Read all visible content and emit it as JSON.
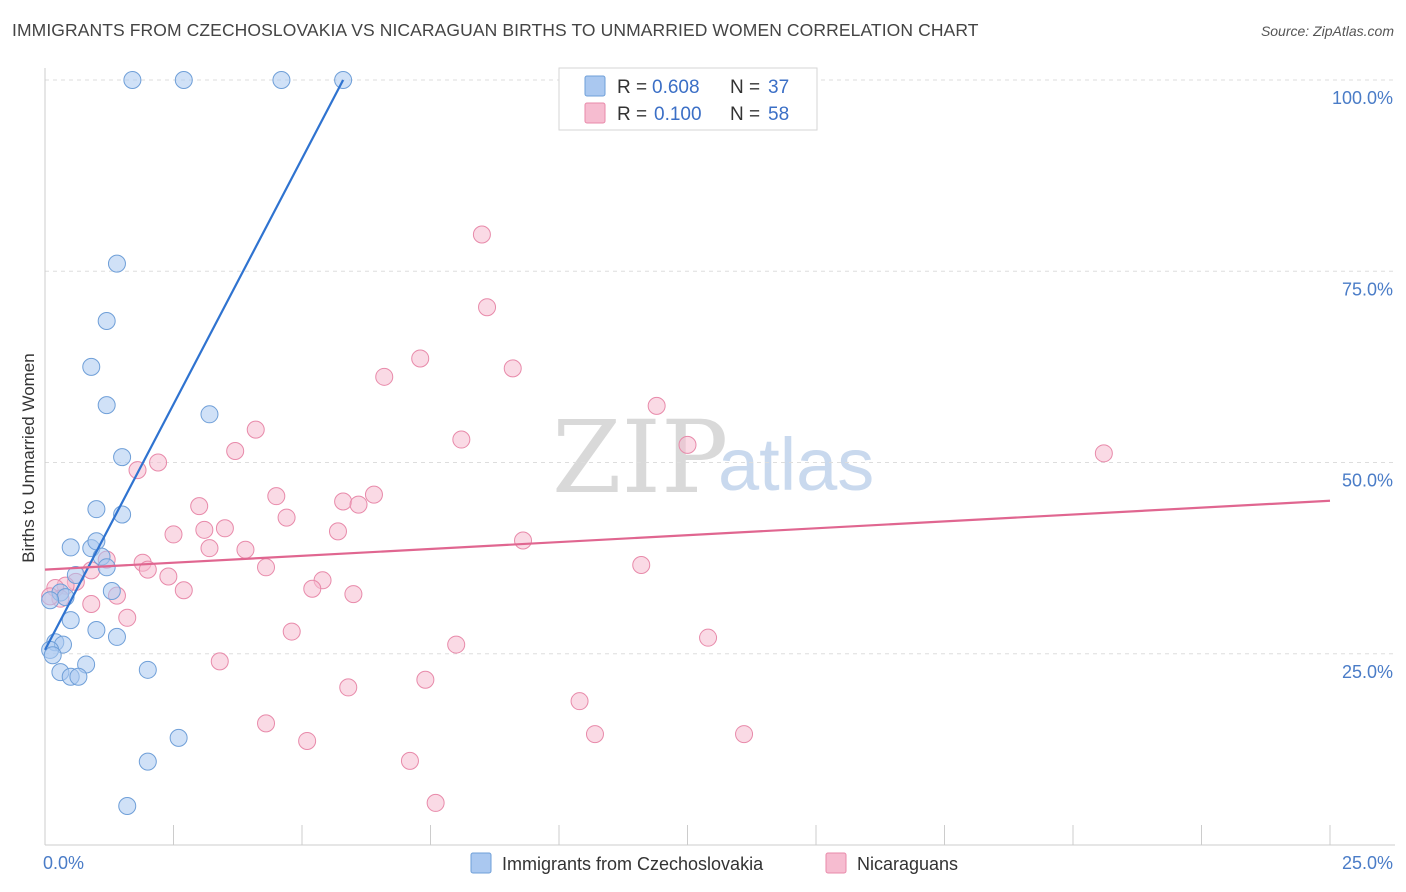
{
  "header": {
    "title": "IMMIGRANTS FROM CZECHOSLOVAKIA VS NICARAGUAN BIRTHS TO UNMARRIED WOMEN CORRELATION CHART",
    "source": "Source: ZipAtlas.com"
  },
  "watermark": {
    "zip": "ZIP",
    "atlas": "atlas"
  },
  "legend": {
    "r_label": "R =",
    "n_label": "N =",
    "series1": {
      "r": "0.608",
      "n": "37"
    },
    "series2": {
      "r": "0.100",
      "n": "58"
    }
  },
  "colors": {
    "blue_fill": "#aac8f0",
    "blue_stroke": "#6f9fd8",
    "blue_line": "#2f73d0",
    "pink_fill": "#f6bcd0",
    "pink_stroke": "#e88aaa",
    "pink_line": "#e06690"
  },
  "chart_data": {
    "type": "scatter",
    "title": "IMMIGRANTS FROM CZECHOSLOVAKIA VS NICARAGUAN BIRTHS TO UNMARRIED WOMEN CORRELATION CHART",
    "xlabel": "",
    "ylabel": "Births to Unmarried Women",
    "xlim": [
      0,
      25
    ],
    "ylim": [
      0,
      100
    ],
    "x_tick_labels": [
      "0.0%",
      "25.0%"
    ],
    "y_tick_labels": [
      "25.0%",
      "50.0%",
      "75.0%",
      "100.0%"
    ],
    "y_tick_values": [
      25,
      50,
      75,
      100
    ],
    "grid": true,
    "legend_position": "top-center",
    "series": [
      {
        "name": "Immigrants from Czechoslovakia",
        "color": "#aac8f0",
        "R": 0.608,
        "N": 37,
        "trend": {
          "x": [
            0.0,
            5.8
          ],
          "y": [
            25.5,
            100
          ]
        },
        "points": [
          {
            "x": 1.7,
            "y": 100
          },
          {
            "x": 2.7,
            "y": 100
          },
          {
            "x": 4.6,
            "y": 100
          },
          {
            "x": 5.8,
            "y": 100
          },
          {
            "x": 1.4,
            "y": 76
          },
          {
            "x": 1.2,
            "y": 68.5
          },
          {
            "x": 0.9,
            "y": 62.5
          },
          {
            "x": 1.2,
            "y": 57.5
          },
          {
            "x": 3.2,
            "y": 56.3
          },
          {
            "x": 1.5,
            "y": 50.7
          },
          {
            "x": 1.0,
            "y": 43.9
          },
          {
            "x": 1.5,
            "y": 43.2
          },
          {
            "x": 0.5,
            "y": 38.9
          },
          {
            "x": 0.9,
            "y": 38.8
          },
          {
            "x": 1.0,
            "y": 39.7
          },
          {
            "x": 1.1,
            "y": 37.7
          },
          {
            "x": 1.2,
            "y": 36.3
          },
          {
            "x": 0.6,
            "y": 35.3
          },
          {
            "x": 1.3,
            "y": 33.2
          },
          {
            "x": 0.3,
            "y": 33.0
          },
          {
            "x": 0.4,
            "y": 32.4
          },
          {
            "x": 0.5,
            "y": 29.4
          },
          {
            "x": 1.0,
            "y": 28.1
          },
          {
            "x": 1.4,
            "y": 27.2
          },
          {
            "x": 0.2,
            "y": 26.5
          },
          {
            "x": 0.35,
            "y": 26.2
          },
          {
            "x": 0.1,
            "y": 25.5
          },
          {
            "x": 0.15,
            "y": 24.8
          },
          {
            "x": 0.8,
            "y": 23.6
          },
          {
            "x": 0.3,
            "y": 22.6
          },
          {
            "x": 0.5,
            "y": 22.0
          },
          {
            "x": 0.65,
            "y": 22.0
          },
          {
            "x": 2.0,
            "y": 22.9
          },
          {
            "x": 2.6,
            "y": 14.0
          },
          {
            "x": 2.0,
            "y": 10.9
          },
          {
            "x": 1.6,
            "y": 5.1
          },
          {
            "x": 0.1,
            "y": 32.0
          }
        ]
      },
      {
        "name": "Nicaraguans",
        "color": "#f6bcd0",
        "R": 0.1,
        "N": 58,
        "trend": {
          "x": [
            0.0,
            25.0
          ],
          "y": [
            36.0,
            45.0
          ]
        },
        "points": [
          {
            "x": 8.5,
            "y": 79.8
          },
          {
            "x": 8.6,
            "y": 70.3
          },
          {
            "x": 7.3,
            "y": 63.6
          },
          {
            "x": 6.6,
            "y": 61.2
          },
          {
            "x": 9.1,
            "y": 62.3
          },
          {
            "x": 11.9,
            "y": 57.4
          },
          {
            "x": 4.1,
            "y": 54.3
          },
          {
            "x": 3.7,
            "y": 51.5
          },
          {
            "x": 8.1,
            "y": 53.0
          },
          {
            "x": 12.5,
            "y": 52.3
          },
          {
            "x": 20.6,
            "y": 51.2
          },
          {
            "x": 2.2,
            "y": 50.0
          },
          {
            "x": 1.8,
            "y": 49.0
          },
          {
            "x": 4.5,
            "y": 45.6
          },
          {
            "x": 6.4,
            "y": 45.8
          },
          {
            "x": 5.8,
            "y": 44.9
          },
          {
            "x": 6.1,
            "y": 44.5
          },
          {
            "x": 3.0,
            "y": 44.3
          },
          {
            "x": 4.7,
            "y": 42.8
          },
          {
            "x": 2.5,
            "y": 40.6
          },
          {
            "x": 3.5,
            "y": 41.4
          },
          {
            "x": 3.1,
            "y": 41.2
          },
          {
            "x": 5.7,
            "y": 41.0
          },
          {
            "x": 9.3,
            "y": 39.8
          },
          {
            "x": 3.2,
            "y": 38.8
          },
          {
            "x": 3.9,
            "y": 38.6
          },
          {
            "x": 1.2,
            "y": 37.3
          },
          {
            "x": 1.9,
            "y": 36.9
          },
          {
            "x": 2.0,
            "y": 36.0
          },
          {
            "x": 11.6,
            "y": 36.6
          },
          {
            "x": 4.3,
            "y": 36.3
          },
          {
            "x": 0.9,
            "y": 35.9
          },
          {
            "x": 2.4,
            "y": 35.1
          },
          {
            "x": 5.4,
            "y": 34.6
          },
          {
            "x": 0.6,
            "y": 34.4
          },
          {
            "x": 0.4,
            "y": 33.9
          },
          {
            "x": 5.2,
            "y": 33.5
          },
          {
            "x": 0.2,
            "y": 33.6
          },
          {
            "x": 2.7,
            "y": 33.3
          },
          {
            "x": 1.4,
            "y": 32.6
          },
          {
            "x": 6.0,
            "y": 32.8
          },
          {
            "x": 0.3,
            "y": 32.2
          },
          {
            "x": 0.9,
            "y": 31.5
          },
          {
            "x": 1.6,
            "y": 29.7
          },
          {
            "x": 4.8,
            "y": 27.9
          },
          {
            "x": 12.9,
            "y": 27.1
          },
          {
            "x": 8.0,
            "y": 26.2
          },
          {
            "x": 3.4,
            "y": 24.0
          },
          {
            "x": 7.4,
            "y": 21.6
          },
          {
            "x": 5.9,
            "y": 20.6
          },
          {
            "x": 10.4,
            "y": 18.8
          },
          {
            "x": 4.3,
            "y": 15.9
          },
          {
            "x": 5.1,
            "y": 13.6
          },
          {
            "x": 10.7,
            "y": 14.5
          },
          {
            "x": 13.6,
            "y": 14.5
          },
          {
            "x": 7.1,
            "y": 11.0
          },
          {
            "x": 7.6,
            "y": 5.5
          },
          {
            "x": 0.1,
            "y": 32.5
          }
        ]
      }
    ]
  }
}
